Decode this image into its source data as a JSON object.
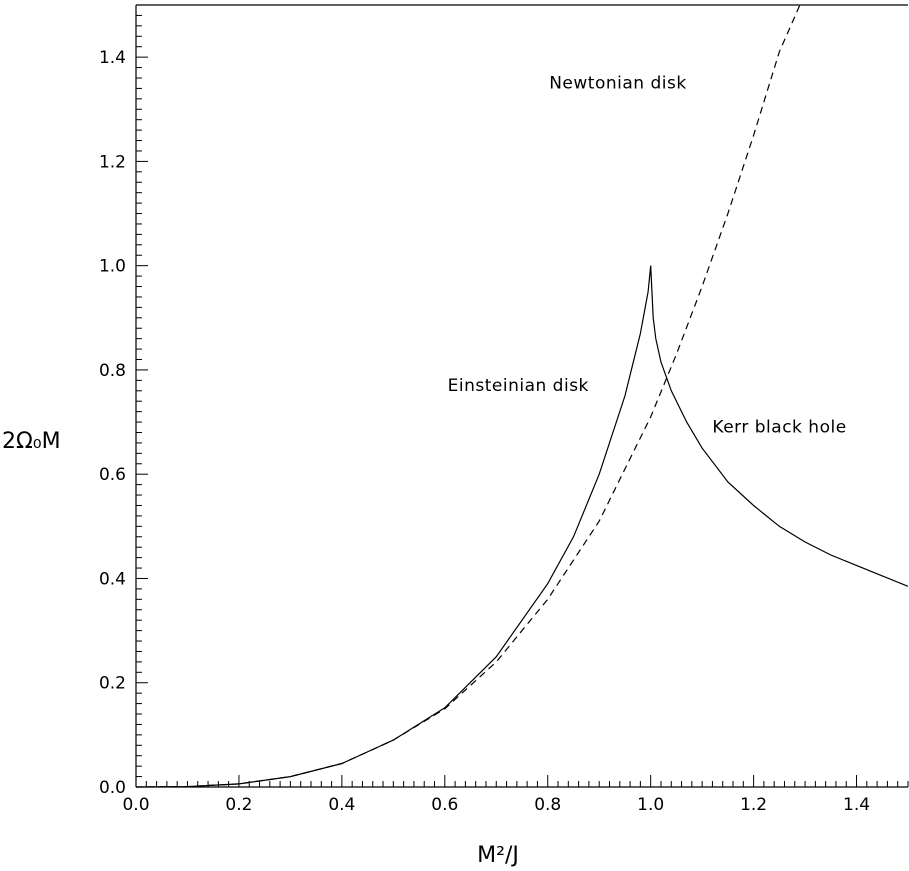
{
  "chart_data": {
    "type": "line",
    "xlabel": "M²/J",
    "ylabel": "2Ω₀M",
    "xlim": [
      0,
      1.5
    ],
    "ylim": [
      0,
      1.5
    ],
    "x_ticks": [
      "0.0",
      "0.2",
      "0.4",
      "0.6",
      "0.8",
      "1.0",
      "1.2",
      "1.4"
    ],
    "y_ticks": [
      "0.0",
      "0.2",
      "0.4",
      "0.6",
      "0.8",
      "1.0",
      "1.2",
      "1.4"
    ],
    "grid": false,
    "series": [
      {
        "name": "Newtonian disk",
        "style": "dashed",
        "x": [
          0.0,
          0.1,
          0.2,
          0.3,
          0.4,
          0.5,
          0.6,
          0.7,
          0.8,
          0.9,
          1.0,
          1.05,
          1.1,
          1.15,
          1.2,
          1.25,
          1.29
        ],
        "y": [
          0.0,
          0.0007,
          0.006,
          0.02,
          0.045,
          0.09,
          0.15,
          0.24,
          0.36,
          0.51,
          0.71,
          0.83,
          0.96,
          1.1,
          1.25,
          1.41,
          1.5
        ]
      },
      {
        "name": "Einsteinian disk",
        "style": "solid",
        "x": [
          0.0,
          0.1,
          0.2,
          0.3,
          0.4,
          0.5,
          0.6,
          0.7,
          0.8,
          0.85,
          0.9,
          0.95,
          0.98,
          0.995,
          1.0
        ],
        "y": [
          0.0,
          0.0007,
          0.006,
          0.02,
          0.045,
          0.09,
          0.152,
          0.25,
          0.39,
          0.48,
          0.6,
          0.75,
          0.87,
          0.95,
          1.0
        ]
      },
      {
        "name": "Kerr black hole",
        "style": "solid",
        "x": [
          1.0,
          1.005,
          1.01,
          1.02,
          1.04,
          1.07,
          1.1,
          1.15,
          1.2,
          1.25,
          1.3,
          1.35,
          1.4,
          1.45,
          1.5
        ],
        "y": [
          1.0,
          0.9,
          0.86,
          0.815,
          0.76,
          0.7,
          0.65,
          0.585,
          0.54,
          0.5,
          0.47,
          0.445,
          0.425,
          0.405,
          0.385
        ]
      }
    ],
    "annotations": [
      {
        "text": "Newtonian disk",
        "x": 1.07,
        "y": 1.34
      },
      {
        "text": "Einsteinian disk",
        "x": 0.88,
        "y": 0.76
      },
      {
        "text": "Kerr black hole",
        "x": 1.12,
        "y": 0.68
      }
    ]
  }
}
